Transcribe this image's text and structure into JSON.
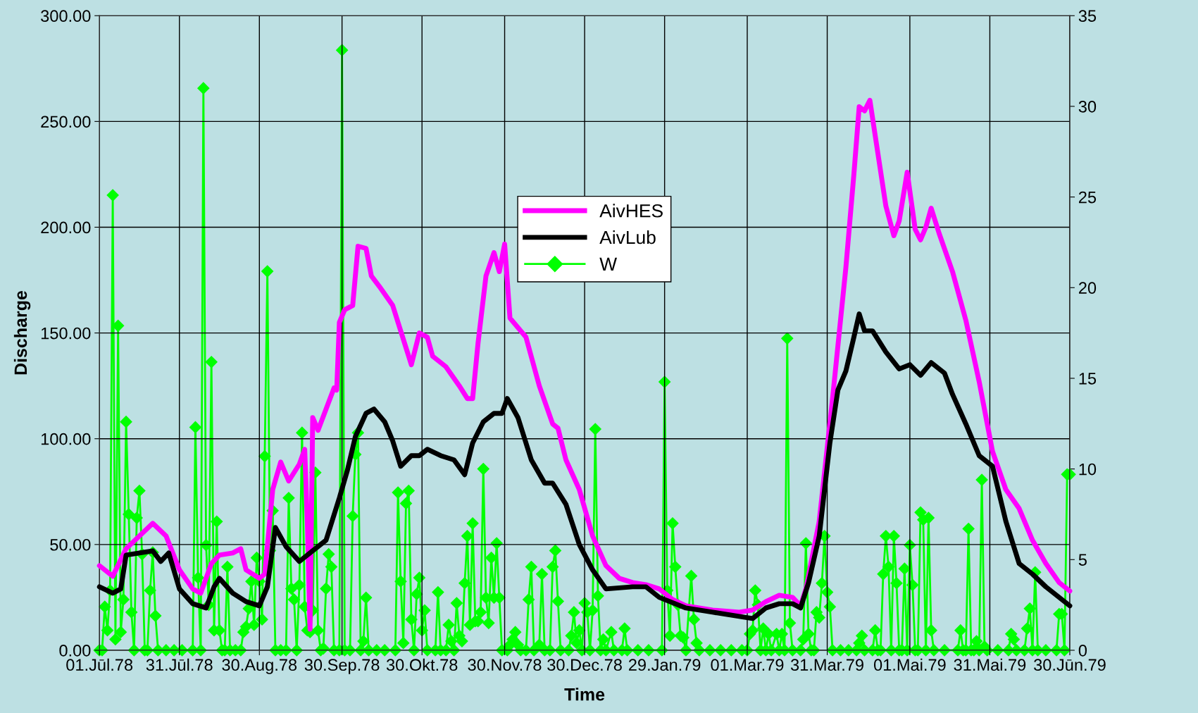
{
  "chart_data": {
    "type": "line",
    "xlabel": "Time",
    "ylabel": "Discharge",
    "xlim": [
      "1978-07-01",
      "1979-06-30"
    ],
    "xticks": [
      {
        "value": "1978-07-01",
        "label": "01.Jūl.78"
      },
      {
        "value": "1978-07-31",
        "label": "31.Jūl.78"
      },
      {
        "value": "1978-08-30",
        "label": "30.Aug.78"
      },
      {
        "value": "1978-09-30",
        "label": "30.Sep.78"
      },
      {
        "value": "1978-10-30",
        "label": "30.Okt.78"
      },
      {
        "value": "1978-11-30",
        "label": "30.Nov.78"
      },
      {
        "value": "1978-12-30",
        "label": "30.Dec.78"
      },
      {
        "value": "1979-01-29",
        "label": "29.Jan.79"
      },
      {
        "value": "1979-03-01",
        "label": "01.Mar.79"
      },
      {
        "value": "1979-03-31",
        "label": "31.Mar.79"
      },
      {
        "value": "1979-05-01",
        "label": "01.Mai.79"
      },
      {
        "value": "1979-05-31",
        "label": "31.Mai.79"
      },
      {
        "value": "1979-06-30",
        "label": "30.Jūn.79"
      }
    ],
    "ylim": [
      0,
      300
    ],
    "yticks": [
      {
        "value": 0,
        "label": "0.00"
      },
      {
        "value": 50,
        "label": "50.00"
      },
      {
        "value": 100,
        "label": "100.00"
      },
      {
        "value": 150,
        "label": "150.00"
      },
      {
        "value": 200,
        "label": "200.00"
      },
      {
        "value": 250,
        "label": "250.00"
      },
      {
        "value": 300,
        "label": "300.00"
      }
    ],
    "y2lim": [
      0,
      35
    ],
    "y2ticks": [
      0,
      5,
      10,
      15,
      20,
      25,
      30,
      35
    ],
    "grid": true,
    "legend": "top",
    "series": [
      {
        "name": "AivHES",
        "color": "#ff00ff",
        "marker": "none",
        "x": [
          "1978-07-01",
          "1978-07-06",
          "1978-07-11",
          "1978-07-16",
          "1978-07-21",
          "1978-07-26",
          "1978-07-31",
          "1978-08-05",
          "1978-08-08",
          "1978-08-12",
          "1978-08-15",
          "1978-08-20",
          "1978-08-23",
          "1978-08-25",
          "1978-08-30",
          "1978-09-01",
          "1978-09-04",
          "1978-09-07",
          "1978-09-10",
          "1978-09-14",
          "1978-09-16",
          "1978-09-17",
          "1978-09-18",
          "1978-09-19",
          "1978-09-21",
          "1978-09-24",
          "1978-09-27",
          "1978-09-28",
          "1978-09-29",
          "1978-10-01",
          "1978-10-04",
          "1978-10-06",
          "1978-10-09",
          "1978-10-11",
          "1978-10-14",
          "1978-10-19",
          "1978-10-24",
          "1978-10-26",
          "1978-10-29",
          "1978-11-01",
          "1978-11-03",
          "1978-11-08",
          "1978-11-13",
          "1978-11-16",
          "1978-11-18",
          "1978-11-20",
          "1978-11-23",
          "1978-11-26",
          "1978-11-28",
          "1978-11-30",
          "1978-12-02",
          "1978-12-08",
          "1978-12-13",
          "1978-12-18",
          "1978-12-20",
          "1978-12-23",
          "1978-12-28",
          "1979-01-02",
          "1979-01-07",
          "1979-01-12",
          "1979-01-17",
          "1979-01-22",
          "1979-01-27",
          "1979-02-01",
          "1979-02-06",
          "1979-02-16",
          "1979-02-26",
          "1979-03-03",
          "1979-03-08",
          "1979-03-13",
          "1979-03-18",
          "1979-03-21",
          "1979-03-23",
          "1979-03-28",
          "1979-04-02",
          "1979-04-07",
          "1979-04-10",
          "1979-04-12",
          "1979-04-14",
          "1979-04-16",
          "1979-04-19",
          "1979-04-22",
          "1979-04-25",
          "1979-04-27",
          "1979-04-30",
          "1979-05-03",
          "1979-05-05",
          "1979-05-07",
          "1979-05-09",
          "1979-05-12",
          "1979-05-17",
          "1979-05-22",
          "1979-05-27",
          "1979-06-01",
          "1979-06-06",
          "1979-06-11",
          "1979-06-16",
          "1979-06-21",
          "1979-06-26",
          "1979-06-30"
        ],
        "values": [
          40,
          35,
          48,
          54,
          60,
          54,
          38,
          29,
          27,
          41,
          45,
          46,
          48,
          38,
          34,
          36,
          76,
          89,
          80,
          88,
          95,
          60,
          10,
          110,
          104,
          114,
          124,
          123,
          155,
          161,
          163,
          191,
          190,
          177,
          172,
          163,
          143,
          135,
          150,
          148,
          139,
          134,
          125,
          119,
          119,
          145,
          177,
          188,
          179,
          192,
          157,
          148,
          125,
          107,
          105,
          90,
          76,
          54,
          40,
          34,
          32,
          31,
          29,
          24,
          21,
          19,
          18,
          19,
          23,
          26,
          25,
          21,
          29,
          61,
          119,
          181,
          225,
          257,
          255,
          260,
          235,
          210,
          196,
          203,
          226,
          199,
          194,
          200,
          209,
          197,
          179,
          156,
          127,
          94,
          76,
          67,
          52,
          41,
          32,
          28
        ]
      },
      {
        "name": "AivLub",
        "color": "#000000",
        "marker": "none",
        "x": [
          "1978-07-01",
          "1978-07-06",
          "1978-07-09",
          "1978-07-11",
          "1978-07-16",
          "1978-07-21",
          "1978-07-24",
          "1978-07-27",
          "1978-07-31",
          "1978-08-05",
          "1978-08-10",
          "1978-08-13",
          "1978-08-15",
          "1978-08-20",
          "1978-08-25",
          "1978-08-30",
          "1978-09-02",
          "1978-09-05",
          "1978-09-09",
          "1978-09-14",
          "1978-09-19",
          "1978-09-24",
          "1978-09-29",
          "1978-10-02",
          "1978-10-05",
          "1978-10-09",
          "1978-10-12",
          "1978-10-16",
          "1978-10-19",
          "1978-10-22",
          "1978-10-26",
          "1978-10-29",
          "1978-11-01",
          "1978-11-06",
          "1978-11-11",
          "1978-11-15",
          "1978-11-18",
          "1978-11-22",
          "1978-11-26",
          "1978-11-29",
          "1978-12-01",
          "1978-12-05",
          "1978-12-10",
          "1978-12-15",
          "1978-12-18",
          "1978-12-23",
          "1978-12-28",
          "1979-01-02",
          "1979-01-07",
          "1979-01-17",
          "1979-01-22",
          "1979-01-27",
          "1979-02-06",
          "1979-02-16",
          "1979-02-26",
          "1979-03-03",
          "1979-03-08",
          "1979-03-13",
          "1979-03-18",
          "1979-03-21",
          "1979-03-24",
          "1979-03-28",
          "1979-04-01",
          "1979-04-04",
          "1979-04-07",
          "1979-04-10",
          "1979-04-12",
          "1979-04-14",
          "1979-04-17",
          "1979-04-22",
          "1979-04-27",
          "1979-05-01",
          "1979-05-05",
          "1979-05-09",
          "1979-05-14",
          "1979-05-17",
          "1979-05-22",
          "1979-05-27",
          "1979-06-01",
          "1979-06-06",
          "1979-06-11",
          "1979-06-16",
          "1979-06-21",
          "1979-06-26",
          "1979-06-30"
        ],
        "values": [
          30,
          27,
          29,
          45,
          46,
          47,
          42,
          46,
          29,
          22,
          20,
          30,
          34,
          27,
          23,
          21,
          30,
          58,
          49,
          42,
          47,
          52,
          72,
          85,
          101,
          112,
          114,
          108,
          99,
          87,
          92,
          92,
          95,
          92,
          90,
          83,
          98,
          108,
          112,
          112,
          119,
          110,
          90,
          79,
          79,
          69,
          50,
          38,
          29,
          30,
          30,
          25,
          20,
          18,
          16,
          15,
          20,
          22,
          22,
          20,
          32,
          54,
          98,
          123,
          132,
          148,
          159,
          151,
          151,
          141,
          133,
          135,
          130,
          136,
          131,
          121,
          107,
          92,
          87,
          61,
          41,
          36,
          30,
          25,
          21
        ]
      },
      {
        "name": "W",
        "color": "#00ff00",
        "marker": "diamond",
        "axis": "y2",
        "x": [
          "1978-07-01",
          "1978-07-02",
          "1978-07-03",
          "1978-07-04",
          "1978-07-05",
          "1978-07-06",
          "1978-07-07",
          "1978-07-08",
          "1978-07-09",
          "1978-07-10",
          "1978-07-11",
          "1978-07-12",
          "1978-07-13",
          "1978-07-14",
          "1978-07-15",
          "1978-07-16",
          "1978-07-17",
          "1978-07-18",
          "1978-07-19",
          "1978-07-20",
          "1978-07-21",
          "1978-07-22",
          "1978-07-23",
          "1978-07-26",
          "1978-07-29",
          "1978-08-01",
          "1978-08-05",
          "1978-08-06",
          "1978-08-07",
          "1978-08-08",
          "1978-08-09",
          "1978-08-10",
          "1978-08-11",
          "1978-08-12",
          "1978-08-13",
          "1978-08-14",
          "1978-08-15",
          "1978-08-16",
          "1978-08-17",
          "1978-08-18",
          "1978-08-19",
          "1978-08-21",
          "1978-08-23",
          "1978-08-24",
          "1978-08-25",
          "1978-08-26",
          "1978-08-27",
          "1978-08-28",
          "1978-08-29",
          "1978-08-30",
          "1978-08-31",
          "1978-09-01",
          "1978-09-02",
          "1978-09-03",
          "1978-09-04",
          "1978-09-05",
          "1978-09-07",
          "1978-09-09",
          "1978-09-10",
          "1978-09-11",
          "1978-09-12",
          "1978-09-13",
          "1978-09-14",
          "1978-09-15",
          "1978-09-16",
          "1978-09-17",
          "1978-09-18",
          "1978-09-19",
          "1978-09-20",
          "1978-09-21",
          "1978-09-22",
          "1978-09-23",
          "1978-09-24",
          "1978-09-25",
          "1978-09-26",
          "1978-09-27",
          "1978-09-29",
          "1978-09-30",
          "1978-10-01",
          "1978-10-03",
          "1978-10-04",
          "1978-10-05",
          "1978-10-06",
          "1978-10-07",
          "1978-10-08",
          "1978-10-09",
          "1978-10-10",
          "1978-10-13",
          "1978-10-16",
          "1978-10-20",
          "1978-10-21",
          "1978-10-22",
          "1978-10-23",
          "1978-10-24",
          "1978-10-25",
          "1978-10-26",
          "1978-10-27",
          "1978-10-28",
          "1978-10-29",
          "1978-10-30",
          "1978-10-31",
          "1978-11-01",
          "1978-11-04",
          "1978-11-05",
          "1978-11-06",
          "1978-11-08",
          "1978-11-09",
          "1978-11-10",
          "1978-11-11",
          "1978-11-12",
          "1978-11-13",
          "1978-11-14",
          "1978-11-15",
          "1978-11-16",
          "1978-11-17",
          "1978-11-18",
          "1978-11-19",
          "1978-11-20",
          "1978-11-21",
          "1978-11-22",
          "1978-11-23",
          "1978-11-24",
          "1978-11-25",
          "1978-11-26",
          "1978-11-27",
          "1978-11-28",
          "1978-11-29",
          "1978-12-01",
          "1978-12-02",
          "1978-12-03",
          "1978-12-04",
          "1978-12-05",
          "1978-12-06",
          "1978-12-08",
          "1978-12-09",
          "1978-12-10",
          "1978-12-11",
          "1978-12-13",
          "1978-12-14",
          "1978-12-15",
          "1978-12-17",
          "1978-12-18",
          "1978-12-19",
          "1978-12-20",
          "1978-12-21",
          "1978-12-24",
          "1978-12-25",
          "1978-12-26",
          "1978-12-27",
          "1978-12-28",
          "1978-12-29",
          "1978-12-30",
          "1978-12-31",
          "1979-01-01",
          "1979-01-02",
          "1979-01-03",
          "1979-01-04",
          "1979-01-05",
          "1979-01-06",
          "1979-01-07",
          "1979-01-09",
          "1979-01-10",
          "1979-01-13",
          "1979-01-14",
          "1979-01-15",
          "1979-01-19",
          "1979-01-23",
          "1979-01-28",
          "1979-01-29",
          "1979-01-30",
          "1979-01-31",
          "1979-02-01",
          "1979-02-02",
          "1979-02-03",
          "1979-02-04",
          "1979-02-05",
          "1979-02-06",
          "1979-02-08",
          "1979-02-09",
          "1979-02-10",
          "1979-02-11",
          "1979-02-15",
          "1979-02-19",
          "1979-02-23",
          "1979-02-27",
          "1979-03-01",
          "1979-03-02",
          "1979-03-03",
          "1979-03-04",
          "1979-03-05",
          "1979-03-06",
          "1979-03-07",
          "1979-03-08",
          "1979-03-09",
          "1979-03-10",
          "1979-03-12",
          "1979-03-13",
          "1979-03-14",
          "1979-03-15",
          "1979-03-16",
          "1979-03-17",
          "1979-03-18",
          "1979-03-21",
          "1979-03-22",
          "1979-03-23",
          "1979-03-24",
          "1979-03-25",
          "1979-03-26",
          "1979-03-27",
          "1979-03-28",
          "1979-03-29",
          "1979-03-30",
          "1979-03-31",
          "1979-04-01",
          "1979-04-02",
          "1979-04-05",
          "1979-04-08",
          "1979-04-11",
          "1979-04-12",
          "1979-04-13",
          "1979-04-14",
          "1979-04-17",
          "1979-04-18",
          "1979-04-19",
          "1979-04-20",
          "1979-04-21",
          "1979-04-22",
          "1979-04-23",
          "1979-04-24",
          "1979-04-25",
          "1979-04-26",
          "1979-04-27",
          "1979-04-28",
          "1979-04-29",
          "1979-04-30",
          "1979-05-01",
          "1979-05-02",
          "1979-05-03",
          "1979-05-04",
          "1979-05-05",
          "1979-05-06",
          "1979-05-07",
          "1979-05-08",
          "1979-05-09",
          "1979-05-10",
          "1979-05-14",
          "1979-05-19",
          "1979-05-20",
          "1979-05-21",
          "1979-05-22",
          "1979-05-23",
          "1979-05-24",
          "1979-05-25",
          "1979-05-26",
          "1979-05-27",
          "1979-05-28",
          "1979-05-29",
          "1979-05-30",
          "1979-06-03",
          "1979-06-07",
          "1979-06-08",
          "1979-06-09",
          "1979-06-10",
          "1979-06-13",
          "1979-06-14",
          "1979-06-15",
          "1979-06-16",
          "1979-06-17",
          "1979-06-18",
          "1979-06-21",
          "1979-06-25",
          "1979-06-26",
          "1979-06-27",
          "1979-06-28",
          "1979-06-29",
          "1979-06-30"
        ],
        "values": [
          0,
          0,
          2.4,
          1.1,
          3.3,
          25.1,
          0.6,
          17.9,
          1.0,
          2.8,
          12.6,
          7.5,
          2.1,
          0,
          7.3,
          8.8,
          5.3,
          0,
          0,
          3.3,
          5.4,
          1.9,
          0,
          0,
          0,
          0,
          0,
          12.3,
          4.0,
          0,
          31.0,
          5.8,
          2.5,
          15.9,
          1.1,
          7.1,
          1.1,
          0,
          0,
          4.6,
          0,
          0,
          0,
          1.0,
          1.3,
          2.3,
          3.8,
          1.4,
          5.1,
          3.8,
          1.7,
          10.7,
          20.9,
          5.5,
          7.7,
          0,
          0,
          0,
          8.4,
          3.4,
          2.8,
          0,
          3.6,
          12.0,
          2.4,
          1.1,
          1.0,
          2.2,
          9.8,
          1.1,
          0,
          0.1,
          3.4,
          5.3,
          4.6,
          0,
          0,
          33.1,
          0,
          0,
          7.4,
          10.8,
          12.0,
          0,
          0.5,
          2.9,
          0,
          0,
          0,
          0,
          8.7,
          3.8,
          0.4,
          8.1,
          8.8,
          1.7,
          0,
          3.1,
          4.0,
          1.1,
          2.2,
          0,
          0,
          3.2,
          0,
          0,
          1.4,
          0.5,
          0,
          2.6,
          0.8,
          0.5,
          3.7,
          6.3,
          1.4,
          7.0,
          1.6,
          1.6,
          2.1,
          10.0,
          2.9,
          1.5,
          5.1,
          2.9,
          5.9,
          2.9,
          0,
          0,
          0.3,
          0.6,
          1.0,
          0.3,
          0,
          0,
          2.8,
          4.6,
          0,
          0.3,
          4.2,
          0,
          0,
          4.6,
          5.5,
          2.7,
          0,
          0,
          0.8,
          2.1,
          0.4,
          1.1,
          0,
          2.6,
          2.1,
          0,
          2.2,
          12.2,
          3.0,
          0,
          0.6,
          0,
          1.0,
          0,
          0,
          1.2,
          0,
          0,
          0,
          0,
          14.8,
          3.3,
          0.8,
          7.0,
          4.6,
          2.5,
          0.8,
          0.7,
          0,
          4.1,
          1.7,
          0.4,
          0,
          0,
          0,
          0,
          0,
          0,
          0.9,
          1.1,
          3.3,
          2.5,
          0,
          1.2,
          0,
          0.9,
          0,
          0.9,
          0,
          0.9,
          0,
          17.2,
          1.5,
          0,
          0,
          0.6,
          5.9,
          0.9,
          0,
          0,
          2.1,
          1.8,
          3.7,
          6.3,
          3.2,
          2.4,
          0,
          0,
          0,
          0,
          0.4,
          0.8,
          0,
          0,
          1.1,
          0,
          0,
          4.2,
          6.3,
          4.6,
          0,
          6.3,
          3.7,
          0,
          0,
          4.5,
          0,
          5.8,
          3.6,
          0,
          0,
          7.6,
          7.2,
          0,
          7.3,
          1.1,
          0,
          0,
          0,
          1.1,
          0,
          0,
          6.7,
          0,
          0,
          0.5,
          0,
          9.4,
          0.2,
          0,
          0,
          0,
          0.9,
          0.6,
          0,
          0,
          1.2,
          2.3,
          0,
          4.3,
          0,
          0,
          0,
          2.0,
          2.0,
          0,
          9.7,
          9.7
        ]
      }
    ]
  }
}
